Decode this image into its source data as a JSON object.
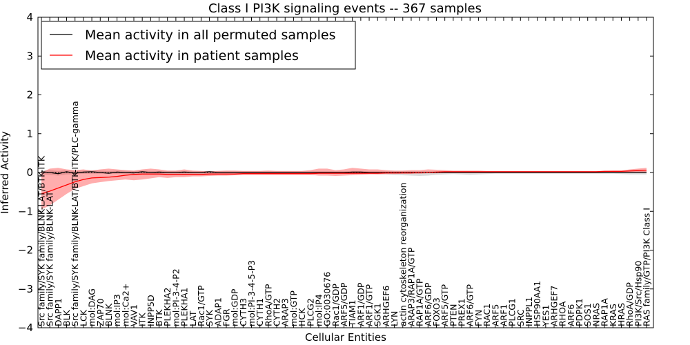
{
  "chart_data": {
    "type": "line",
    "title": "Class I PI3K signaling events -- 367 samples",
    "xlabel": "Cellular Entities",
    "ylabel": "Inferred Activity",
    "ylim": [
      -4,
      4
    ],
    "yticks": [
      -4,
      -3,
      -2,
      -1,
      0,
      1,
      2,
      3,
      4
    ],
    "ytick_labels": [
      "−4",
      "−3",
      "−2",
      "−1",
      "0",
      "1",
      "2",
      "3",
      "4"
    ],
    "legend_position": "top-left",
    "categories": [
      "Src family/SYK family/BLNK-LAT/BTK-ITK",
      "Src family/SYK family/BLNK-LAT",
      "DAPP1",
      "BLK",
      "Src family/SYK family/BLNK-LAT/BTK-ITK/PLC-gamma",
      "LCK",
      "mol:DAG",
      "ZAP70",
      "BLNK",
      "mol:IP3",
      "mol:Ca2+",
      "VAV1",
      "ITK",
      "INPP5D",
      "BTK",
      "PLEKHA2",
      "mol:PI-3-4-P2",
      "PLEKHA1",
      "LAT",
      "Rac1/GTP",
      "SYK",
      "ADAP1",
      "FGR",
      "mol:GDP",
      "CYTH3",
      "mol:PI-3-4-5-P3",
      "CYTH1",
      "RhoA/GTP",
      "CYTH2",
      "ARAP3",
      "mol:GTP",
      "HCK",
      "PLCG2",
      "mol:IP4",
      "GO:0030676",
      "Rac1/GDP",
      "ARF5/GDP",
      "TIAM1",
      "ARF1/GDP",
      "ARF1/GTP",
      "SGK1",
      "ARHGEF6",
      "LYN",
      "actin cytoskeleton reorganization",
      "ARAP3/RAP1A/GTP",
      "RAP1A/GTP",
      "ARF6/GDP",
      "FOXO3",
      "ARF5/GTP",
      "PTEN",
      "PREX1",
      "ARF6/GTP",
      "FYN",
      "RAC1",
      "ARF5",
      "ARF1",
      "PLCG1",
      "SRC",
      "INPPL1",
      "HSP90AA1",
      "YES1",
      "ARHGEF7",
      "RHOA",
      "ARF6",
      "PDPK1",
      "SOS1",
      "NRAS",
      "RAP1A",
      "KRAS",
      "HRAS",
      "RhoA/GDP",
      "PI3K/Src/Hsp90",
      "RAS family/GTP/PI3K Class I"
    ],
    "series": [
      {
        "name": "Mean activity in all permuted samples",
        "color": "#000000",
        "values": [
          0.02,
          0.0,
          -0.03,
          0.02,
          -0.02,
          0.01,
          0.02,
          0.0,
          -0.02,
          0.01,
          0.0,
          -0.01,
          0.02,
          0.0,
          0.01,
          0.0,
          0.0,
          0.01,
          0.0,
          0.0,
          0.02,
          0.0,
          0.0,
          0.0,
          0.0,
          0.0,
          0.0,
          0.0,
          0.0,
          0.0,
          0.0,
          0.0,
          0.0,
          0.0,
          0.0,
          0.0,
          0.0,
          0.01,
          0.01,
          0.0,
          0.0,
          0.0,
          0.0,
          0.0,
          0.0,
          0.0,
          0.0,
          0.0,
          0.0,
          0.0,
          0.0,
          0.0,
          0.0,
          0.0,
          0.0,
          0.0,
          0.0,
          0.0,
          0.0,
          0.0,
          0.0,
          0.0,
          0.0,
          0.0,
          0.0,
          0.0,
          0.0,
          0.0,
          0.0,
          0.0,
          0.0,
          0.0,
          0.0
        ],
        "band_lower": [
          -0.05,
          -0.06,
          -0.08,
          -0.05,
          -0.05,
          -0.03,
          -0.03,
          -0.03,
          -0.03,
          -0.03,
          -0.03,
          -0.03,
          -0.03,
          -0.03,
          -0.03,
          -0.03,
          -0.03,
          -0.03,
          -0.03,
          -0.03,
          -0.03,
          -0.03,
          -0.03,
          -0.03,
          -0.03,
          -0.03,
          -0.03,
          -0.03,
          -0.03,
          -0.03,
          -0.03,
          -0.03,
          -0.03,
          -0.03,
          -0.03,
          -0.03,
          -0.03,
          -0.03,
          -0.03,
          -0.03,
          -0.04,
          -0.05,
          -0.06,
          -0.07,
          -0.08,
          -0.09,
          -0.08,
          -0.06,
          -0.05,
          -0.04,
          -0.05,
          -0.06,
          -0.05,
          -0.04,
          -0.03,
          -0.03,
          -0.03,
          -0.03,
          -0.03,
          -0.03,
          -0.03,
          -0.03,
          -0.03,
          -0.03,
          -0.03,
          -0.03,
          -0.03,
          -0.03,
          -0.03,
          -0.04,
          -0.05,
          -0.05,
          -0.05
        ],
        "band_upper": [
          0.06,
          0.06,
          0.04,
          0.06,
          0.05,
          0.05,
          0.06,
          0.05,
          0.04,
          0.05,
          0.05,
          0.04,
          0.05,
          0.04,
          0.04,
          0.04,
          0.04,
          0.04,
          0.03,
          0.03,
          0.04,
          0.03,
          0.03,
          0.03,
          0.03,
          0.03,
          0.03,
          0.03,
          0.03,
          0.03,
          0.03,
          0.03,
          0.03,
          0.03,
          0.03,
          0.03,
          0.03,
          0.04,
          0.04,
          0.03,
          0.03,
          0.03,
          0.03,
          0.03,
          0.03,
          0.03,
          0.03,
          0.03,
          0.03,
          0.03,
          0.03,
          0.03,
          0.03,
          0.03,
          0.03,
          0.03,
          0.03,
          0.03,
          0.03,
          0.03,
          0.03,
          0.03,
          0.03,
          0.03,
          0.03,
          0.03,
          0.03,
          0.03,
          0.03,
          0.03,
          0.03,
          0.03,
          0.03
        ]
      },
      {
        "name": "Mean activity in patient samples",
        "color": "#ff0000",
        "values": [
          -0.55,
          -0.48,
          -0.4,
          -0.32,
          -0.24,
          -0.18,
          -0.14,
          -0.13,
          -0.12,
          -0.1,
          -0.07,
          -0.05,
          -0.04,
          -0.04,
          -0.04,
          -0.05,
          -0.05,
          -0.05,
          -0.05,
          -0.05,
          -0.04,
          -0.04,
          -0.04,
          -0.04,
          -0.03,
          -0.03,
          -0.03,
          -0.03,
          -0.03,
          -0.03,
          -0.03,
          -0.03,
          -0.03,
          -0.02,
          -0.02,
          -0.02,
          -0.02,
          -0.02,
          -0.02,
          -0.02,
          -0.02,
          -0.01,
          -0.01,
          -0.01,
          -0.01,
          0.0,
          0.0,
          0.01,
          0.02,
          0.02,
          0.02,
          0.02,
          0.02,
          0.02,
          0.02,
          0.02,
          0.02,
          0.02,
          0.02,
          0.02,
          0.02,
          0.02,
          0.02,
          0.02,
          0.02,
          0.02,
          0.02,
          0.03,
          0.03,
          0.03,
          0.04,
          0.05,
          0.06
        ],
        "band_lower": [
          -0.95,
          -0.85,
          -0.7,
          -0.55,
          -0.42,
          -0.35,
          -0.28,
          -0.25,
          -0.22,
          -0.2,
          -0.18,
          -0.2,
          -0.18,
          -0.15,
          -0.12,
          -0.14,
          -0.12,
          -0.12,
          -0.1,
          -0.1,
          -0.09,
          -0.08,
          -0.08,
          -0.07,
          -0.06,
          -0.06,
          -0.06,
          -0.06,
          -0.06,
          -0.06,
          -0.06,
          -0.06,
          -0.06,
          -0.08,
          -0.08,
          -0.09,
          -0.08,
          -0.07,
          -0.06,
          -0.05,
          -0.05,
          -0.04,
          -0.04,
          -0.03,
          -0.03,
          -0.03,
          -0.02,
          -0.02,
          -0.01,
          -0.01,
          -0.01,
          -0.01,
          -0.01,
          -0.01,
          -0.01,
          -0.01,
          -0.01,
          -0.01,
          -0.01,
          -0.01,
          -0.01,
          -0.01,
          -0.01,
          -0.01,
          -0.01,
          -0.01,
          -0.01,
          -0.01,
          -0.01,
          -0.01,
          -0.01,
          0.0,
          0.0
        ],
        "band_upper": [
          0.0,
          0.1,
          0.12,
          0.08,
          0.06,
          0.08,
          0.05,
          0.08,
          0.1,
          0.08,
          0.06,
          0.05,
          0.08,
          0.1,
          0.08,
          0.05,
          0.05,
          0.08,
          0.05,
          0.04,
          0.03,
          0.04,
          0.05,
          0.05,
          0.04,
          0.04,
          0.04,
          0.05,
          0.04,
          0.04,
          0.04,
          0.04,
          0.06,
          0.1,
          0.1,
          0.06,
          0.08,
          0.12,
          0.1,
          0.08,
          0.08,
          0.06,
          0.05,
          0.05,
          0.06,
          0.06,
          0.08,
          0.07,
          0.06,
          0.05,
          0.05,
          0.05,
          0.05,
          0.04,
          0.04,
          0.04,
          0.04,
          0.04,
          0.04,
          0.04,
          0.04,
          0.04,
          0.04,
          0.04,
          0.04,
          0.04,
          0.04,
          0.04,
          0.05,
          0.05,
          0.08,
          0.1,
          0.12
        ]
      }
    ]
  }
}
